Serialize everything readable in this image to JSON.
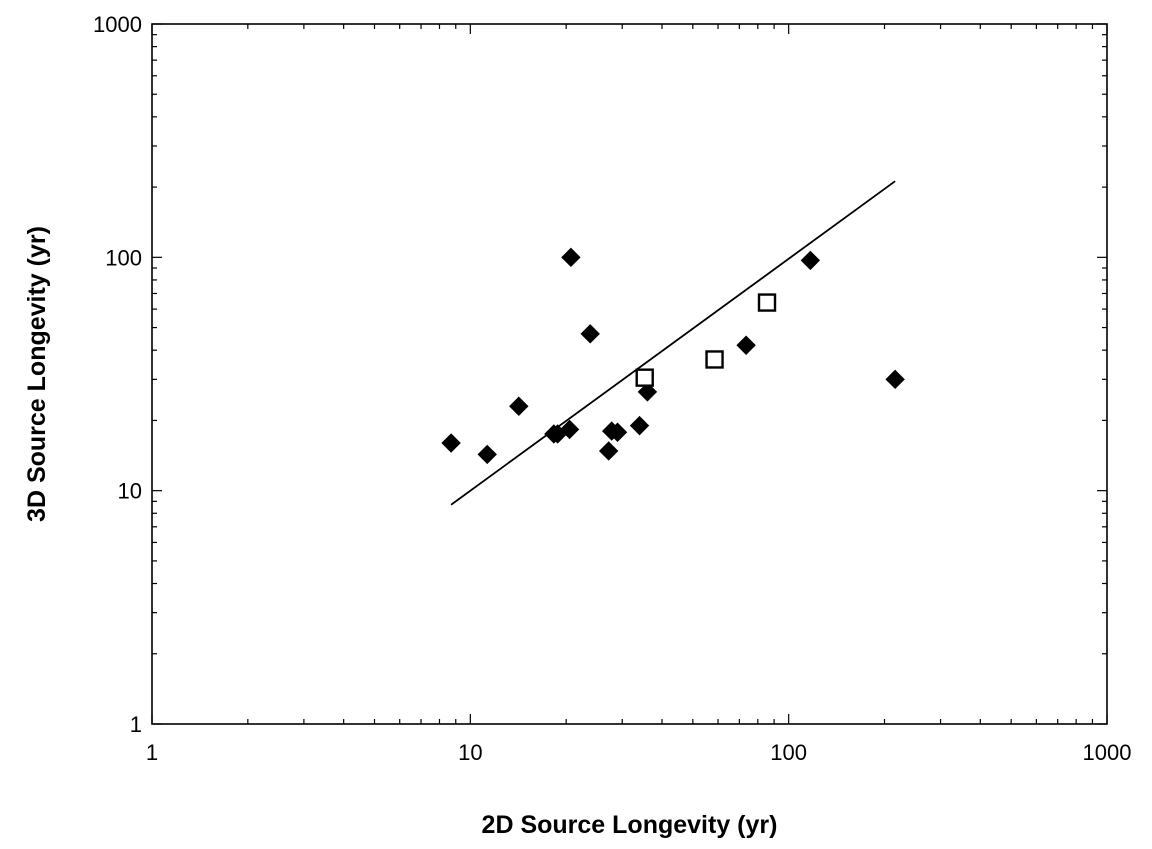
{
  "chart_data": {
    "type": "scatter",
    "title": "",
    "xlabel": "2D Source Longevity (yr)",
    "ylabel": "3D Source Longevity (yr)",
    "xscale": "log",
    "yscale": "log",
    "xlim": [
      1,
      1000
    ],
    "ylim": [
      1,
      1000
    ],
    "grid": false,
    "legend": "none",
    "x_ticks": [
      "1",
      "10",
      "100",
      "1000"
    ],
    "y_ticks": [
      "1",
      "10",
      "100",
      "1000"
    ],
    "series": [
      {
        "marker": "filled-diamond",
        "color": "#000000",
        "points": [
          [
            8.7,
            16
          ],
          [
            11.3,
            14.3
          ],
          [
            14.2,
            23
          ],
          [
            18.3,
            17.5
          ],
          [
            18.8,
            17.5
          ],
          [
            20.5,
            18.3
          ],
          [
            20.7,
            100
          ],
          [
            23.8,
            47
          ],
          [
            27.2,
            14.8
          ],
          [
            27.8,
            18
          ],
          [
            29.0,
            17.8
          ],
          [
            34.0,
            19
          ],
          [
            36.0,
            26.5
          ],
          [
            73.5,
            42
          ],
          [
            117,
            97
          ],
          [
            216,
            30
          ]
        ]
      },
      {
        "marker": "open-square",
        "color": "#000000",
        "points": [
          [
            35.3,
            30.5
          ],
          [
            58.5,
            36.5
          ],
          [
            85.5,
            64
          ]
        ]
      }
    ],
    "trendline": {
      "type": "line",
      "color": "#000000",
      "points": [
        [
          8.7,
          8.7
        ],
        [
          216,
          212
        ]
      ]
    }
  }
}
